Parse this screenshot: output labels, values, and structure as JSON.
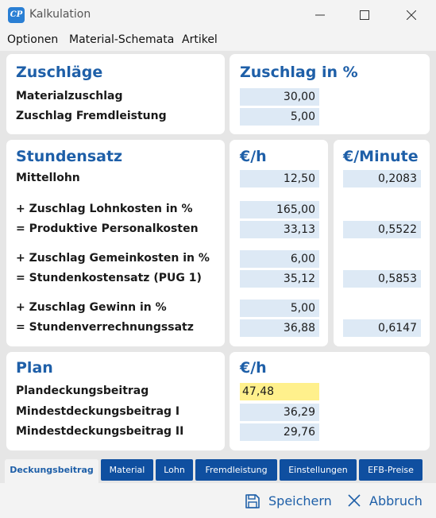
{
  "window": {
    "title": "Kalkulation",
    "icon": "app-logo-icon"
  },
  "menu": [
    "Optionen",
    "Material-Schemata",
    "Artikel"
  ],
  "zuschlaege": {
    "title": "Zuschläge",
    "value_title": "Zuschlag in %",
    "rows": [
      {
        "label": "Materialzuschlag",
        "value": "30,00"
      },
      {
        "label": "Zuschlag Fremdleistung",
        "value": "5,00"
      }
    ]
  },
  "stundensatz": {
    "title": "Stundensatz",
    "col1_title": "€/h",
    "col2_title": "€/Minute",
    "rows": [
      {
        "label": "Mittellohn",
        "value": "12,50",
        "minute": "0,2083"
      },
      {
        "label": "+ Zuschlag Lohnkosten in %",
        "value": "165,00",
        "minute": ""
      },
      {
        "label": "= Produktive Personalkosten",
        "value": "33,13",
        "minute": "0,5522"
      },
      {
        "label": "+ Zuschlag Gemeinkosten in %",
        "value": "6,00",
        "minute": ""
      },
      {
        "label": "= Stundenkostensatz (PUG 1)",
        "value": "35,12",
        "minute": "0,5853"
      },
      {
        "label": "+ Zuschlag Gewinn in %",
        "value": "5,00",
        "minute": ""
      },
      {
        "label": "= Stundenverrechnungssatz",
        "value": "36,88",
        "minute": "0,6147"
      }
    ]
  },
  "plan": {
    "title": "Plan",
    "value_title": "€/h",
    "rows": [
      {
        "label": "Plandeckungsbeitrag",
        "value": "47,48"
      },
      {
        "label": "Mindestdeckungsbeitrag I",
        "value": "36,29"
      },
      {
        "label": "Mindestdeckungsbeitrag II",
        "value": "29,76"
      }
    ]
  },
  "tabs": [
    "Deckungsbeitrag",
    "Material",
    "Lohn",
    "Fremdleistung",
    "Einstellungen",
    "EFB-Preise"
  ],
  "active_tab": "Deckungsbeitrag",
  "footer": {
    "save_label": "Speichern",
    "cancel_label": "Abbruch"
  },
  "colors": {
    "accent": "#1e5fa8",
    "tab_bg": "#0f4fa0",
    "field_bg": "#dde9f5",
    "highlight": "#fff08c"
  }
}
